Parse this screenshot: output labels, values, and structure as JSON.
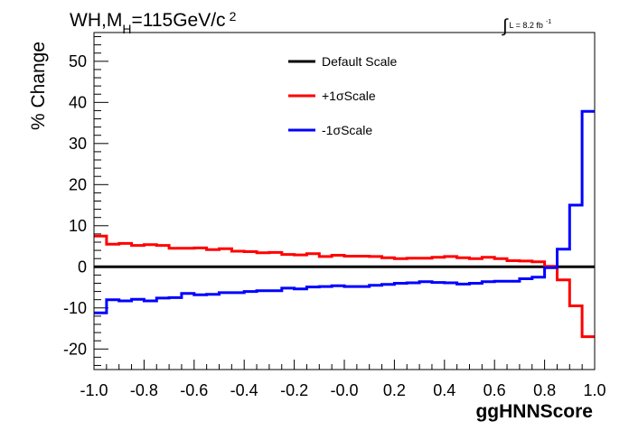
{
  "header": {
    "title_main": "WH,M",
    "title_sub": "H",
    "title_rest": "=115GeV/c",
    "title_sup": "2",
    "lumi_symbol": "∫",
    "lumi_text": "L = 8.2 fb",
    "lumi_sup": "-1"
  },
  "chart_data": {
    "type": "line",
    "xlabel": "ggHNNScore",
    "ylabel": "% Change",
    "xlim": [
      -1.0,
      1.0
    ],
    "ylim": [
      -25,
      57
    ],
    "x_ticks": [
      "-1.0",
      "-0.8",
      "-0.6",
      "-0.4",
      "-0.2",
      "-0.0",
      "0.2",
      "0.4",
      "0.6",
      "0.8",
      "1.0"
    ],
    "y_ticks": [
      "-20",
      "-10",
      "0",
      "10",
      "20",
      "30",
      "40",
      "50"
    ],
    "bin_edges": [
      -1.0,
      -0.95,
      -0.9,
      -0.85,
      -0.8,
      -0.75,
      -0.7,
      -0.65,
      -0.6,
      -0.55,
      -0.5,
      -0.45,
      -0.4,
      -0.35,
      -0.3,
      -0.25,
      -0.2,
      -0.15,
      -0.1,
      -0.05,
      0.0,
      0.05,
      0.1,
      0.15,
      0.2,
      0.25,
      0.3,
      0.35,
      0.4,
      0.45,
      0.5,
      0.55,
      0.6,
      0.65,
      0.7,
      0.75,
      0.8,
      0.85,
      0.9,
      0.95,
      1.0
    ],
    "series": [
      {
        "name": "Default Scale",
        "color": "#000000",
        "values": [
          0,
          0,
          0,
          0,
          0,
          0,
          0,
          0,
          0,
          0,
          0,
          0,
          0,
          0,
          0,
          0,
          0,
          0,
          0,
          0,
          0,
          0,
          0,
          0,
          0,
          0,
          0,
          0,
          0,
          0,
          0,
          0,
          0,
          0,
          0,
          0,
          0,
          0,
          0,
          0
        ]
      },
      {
        "name": "+1σScale",
        "color": "#ff0000",
        "values": [
          7.5,
          5.5,
          5.7,
          5.2,
          5.4,
          5.2,
          4.5,
          4.5,
          4.6,
          4.2,
          4.4,
          3.8,
          3.7,
          3.4,
          3.5,
          3.0,
          2.9,
          3.2,
          2.5,
          2.8,
          2.6,
          2.6,
          2.5,
          2.2,
          2.0,
          2.1,
          2.1,
          2.3,
          2.5,
          2.2,
          2.0,
          2.3,
          2.0,
          1.5,
          1.4,
          1.2,
          0.1,
          -3.2,
          -9.5,
          -17.0
        ]
      },
      {
        "name": "-1σScale",
        "color": "#0000ff",
        "values": [
          -11.2,
          -8.0,
          -8.3,
          -7.9,
          -8.3,
          -7.6,
          -7.5,
          -6.5,
          -6.8,
          -6.7,
          -6.3,
          -6.3,
          -6.0,
          -5.8,
          -5.8,
          -5.2,
          -5.4,
          -4.9,
          -4.8,
          -4.6,
          -4.8,
          -4.8,
          -4.5,
          -4.3,
          -4.0,
          -3.9,
          -3.6,
          -3.8,
          -3.9,
          -4.2,
          -4.0,
          -3.6,
          -3.5,
          -3.5,
          -2.9,
          -2.5,
          -0.2,
          4.3,
          15.0,
          37.8
        ]
      }
    ],
    "legend_position": "top-center",
    "grid": false
  }
}
